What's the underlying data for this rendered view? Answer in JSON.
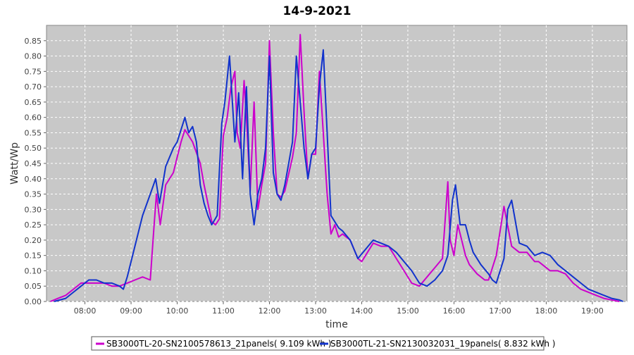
{
  "chart_data": {
    "type": "line",
    "title": "14-9-2021",
    "xlabel": "time",
    "ylabel": "Watt/Wp",
    "xlim": [
      "07:10",
      "19:45"
    ],
    "ylim": [
      0,
      0.9
    ],
    "x_ticks": [
      "08:00",
      "09:00",
      "10:00",
      "11:00",
      "12:00",
      "13:00",
      "14:00",
      "15:00",
      "16:00",
      "17:00",
      "18:00",
      "19:00"
    ],
    "y_ticks": [
      "0.00",
      "0.05",
      "0.10",
      "0.15",
      "0.20",
      "0.25",
      "0.30",
      "0.35",
      "0.40",
      "0.45",
      "0.50",
      "0.55",
      "0.60",
      "0.65",
      "0.70",
      "0.75",
      "0.80",
      "0.85"
    ],
    "grid": true,
    "legend_position": "bottom",
    "series": [
      {
        "name": "SB3000TL-20-SN2100578613_21panels( 9.109 kWh )",
        "color": "#cc00cc",
        "x": [
          "07:15",
          "07:25",
          "07:35",
          "07:45",
          "07:55",
          "08:05",
          "08:15",
          "08:25",
          "08:35",
          "08:45",
          "08:55",
          "09:05",
          "09:15",
          "09:25",
          "09:30",
          "09:33",
          "09:38",
          "09:45",
          "09:55",
          "10:00",
          "10:05",
          "10:10",
          "10:20",
          "10:30",
          "10:35",
          "10:45",
          "10:50",
          "10:55",
          "11:00",
          "11:05",
          "11:10",
          "11:15",
          "11:18",
          "11:22",
          "11:27",
          "11:30",
          "11:35",
          "11:40",
          "11:45",
          "11:50",
          "11:55",
          "12:00",
          "12:05",
          "12:10",
          "12:15",
          "12:20",
          "12:30",
          "12:35",
          "12:40",
          "12:45",
          "12:50",
          "12:55",
          "13:00",
          "13:05",
          "13:10",
          "13:15",
          "13:20",
          "13:25",
          "13:30",
          "13:35",
          "13:45",
          "13:55",
          "14:00",
          "14:05",
          "14:15",
          "14:25",
          "14:35",
          "14:45",
          "14:55",
          "15:05",
          "15:15",
          "15:25",
          "15:35",
          "15:45",
          "15:52",
          "15:55",
          "16:00",
          "16:05",
          "16:10",
          "16:15",
          "16:20",
          "16:30",
          "16:40",
          "16:45",
          "16:55",
          "17:05",
          "17:15",
          "17:25",
          "17:35",
          "17:45",
          "17:50",
          "17:55",
          "18:05",
          "18:15",
          "18:25",
          "18:35",
          "18:45",
          "18:55",
          "19:05",
          "19:15",
          "19:25",
          "19:35"
        ],
        "y": [
          0.0,
          0.01,
          0.02,
          0.04,
          0.06,
          0.06,
          0.06,
          0.06,
          0.05,
          0.05,
          0.06,
          0.07,
          0.08,
          0.07,
          0.25,
          0.35,
          0.25,
          0.38,
          0.42,
          0.47,
          0.52,
          0.56,
          0.52,
          0.45,
          0.38,
          0.26,
          0.25,
          0.27,
          0.54,
          0.6,
          0.7,
          0.75,
          0.55,
          0.5,
          0.72,
          0.6,
          0.36,
          0.65,
          0.3,
          0.38,
          0.45,
          0.85,
          0.55,
          0.35,
          0.34,
          0.36,
          0.47,
          0.55,
          0.87,
          0.62,
          0.4,
          0.48,
          0.48,
          0.75,
          0.55,
          0.35,
          0.22,
          0.25,
          0.21,
          0.22,
          0.2,
          0.14,
          0.13,
          0.15,
          0.19,
          0.18,
          0.18,
          0.14,
          0.1,
          0.06,
          0.05,
          0.08,
          0.11,
          0.14,
          0.39,
          0.2,
          0.15,
          0.25,
          0.2,
          0.15,
          0.12,
          0.09,
          0.07,
          0.07,
          0.15,
          0.31,
          0.18,
          0.16,
          0.16,
          0.13,
          0.13,
          0.12,
          0.1,
          0.1,
          0.09,
          0.06,
          0.04,
          0.03,
          0.02,
          0.01,
          0.005,
          0.0
        ]
      },
      {
        "name": "SB3000TL-21-SN2130032031_19panels( 8.832 kWh )",
        "color": "#1133cc",
        "x": [
          "07:20",
          "07:35",
          "07:45",
          "07:55",
          "08:05",
          "08:15",
          "08:25",
          "08:35",
          "08:45",
          "08:50",
          "08:55",
          "09:05",
          "09:15",
          "09:25",
          "09:32",
          "09:37",
          "09:45",
          "09:55",
          "10:00",
          "10:10",
          "10:15",
          "10:20",
          "10:25",
          "10:30",
          "10:35",
          "10:40",
          "10:45",
          "10:52",
          "10:58",
          "11:02",
          "11:08",
          "11:15",
          "11:20",
          "11:25",
          "11:30",
          "11:35",
          "11:40",
          "11:45",
          "11:50",
          "11:55",
          "12:00",
          "12:05",
          "12:10",
          "12:15",
          "12:20",
          "12:25",
          "12:30",
          "12:35",
          "12:40",
          "12:45",
          "12:50",
          "12:55",
          "13:00",
          "13:05",
          "13:10",
          "13:15",
          "13:20",
          "13:25",
          "13:30",
          "13:35",
          "13:45",
          "13:55",
          "14:05",
          "14:15",
          "14:25",
          "14:35",
          "14:45",
          "14:55",
          "15:05",
          "15:15",
          "15:25",
          "15:35",
          "15:45",
          "15:52",
          "15:58",
          "16:02",
          "16:08",
          "16:15",
          "16:20",
          "16:25",
          "16:35",
          "16:45",
          "16:50",
          "16:55",
          "17:05",
          "17:10",
          "17:15",
          "17:25",
          "17:35",
          "17:45",
          "17:55",
          "18:05",
          "18:15",
          "18:25",
          "18:35",
          "18:45",
          "18:55",
          "19:05",
          "19:15",
          "19:25",
          "19:35",
          "19:40"
        ],
        "y": [
          0.0,
          0.01,
          0.03,
          0.05,
          0.07,
          0.07,
          0.06,
          0.06,
          0.05,
          0.04,
          0.08,
          0.18,
          0.28,
          0.35,
          0.4,
          0.32,
          0.44,
          0.5,
          0.52,
          0.6,
          0.55,
          0.57,
          0.52,
          0.38,
          0.32,
          0.28,
          0.25,
          0.28,
          0.58,
          0.65,
          0.8,
          0.52,
          0.68,
          0.4,
          0.7,
          0.35,
          0.25,
          0.35,
          0.4,
          0.5,
          0.8,
          0.42,
          0.35,
          0.33,
          0.38,
          0.45,
          0.52,
          0.8,
          0.65,
          0.5,
          0.4,
          0.48,
          0.5,
          0.7,
          0.82,
          0.55,
          0.28,
          0.26,
          0.24,
          0.23,
          0.2,
          0.14,
          0.17,
          0.2,
          0.19,
          0.18,
          0.16,
          0.13,
          0.1,
          0.06,
          0.05,
          0.07,
          0.1,
          0.15,
          0.33,
          0.38,
          0.25,
          0.25,
          0.2,
          0.16,
          0.12,
          0.09,
          0.07,
          0.06,
          0.14,
          0.3,
          0.33,
          0.19,
          0.18,
          0.15,
          0.16,
          0.15,
          0.12,
          0.1,
          0.08,
          0.06,
          0.04,
          0.03,
          0.02,
          0.01,
          0.005,
          0.0
        ]
      }
    ]
  }
}
